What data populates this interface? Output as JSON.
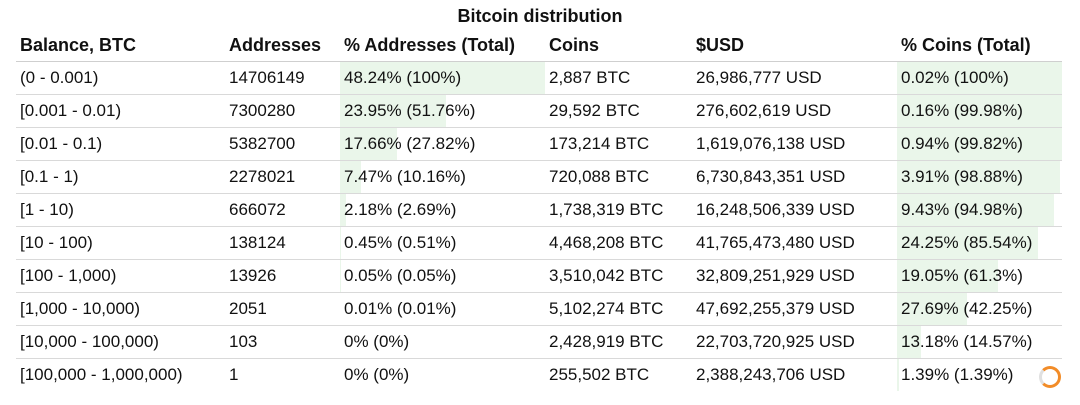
{
  "title": "Bitcoin distribution",
  "columns": [
    "Balance, BTC",
    "Addresses",
    "% Addresses (Total)",
    "Coins",
    "$USD",
    "% Coins (Total)"
  ],
  "rows": [
    {
      "balance": "(0 - 0.001)",
      "addresses": "14706149",
      "pct_addresses": "48.24% (100%)",
      "coins": "2,887 BTC",
      "usd": "26,986,777 USD",
      "pct_coins": "0.02% (100%)",
      "addr_share": 1.0,
      "coin_share": 1.0
    },
    {
      "balance": "[0.001 - 0.01)",
      "addresses": "7300280",
      "pct_addresses": "23.95% (51.76%)",
      "coins": "29,592 BTC",
      "usd": "276,602,619 USD",
      "pct_coins": "0.16% (99.98%)",
      "addr_share": 0.5176,
      "coin_share": 0.9998
    },
    {
      "balance": "[0.01 - 0.1)",
      "addresses": "5382700",
      "pct_addresses": "17.66% (27.82%)",
      "coins": "173,214 BTC",
      "usd": "1,619,076,138 USD",
      "pct_coins": "0.94% (99.82%)",
      "addr_share": 0.2782,
      "coin_share": 0.9982
    },
    {
      "balance": "[0.1 - 1)",
      "addresses": "2278021",
      "pct_addresses": "7.47% (10.16%)",
      "coins": "720,088 BTC",
      "usd": "6,730,843,351 USD",
      "pct_coins": "3.91% (98.88%)",
      "addr_share": 0.1016,
      "coin_share": 0.9888
    },
    {
      "balance": "[1 - 10)",
      "addresses": "666072",
      "pct_addresses": "2.18% (2.69%)",
      "coins": "1,738,319 BTC",
      "usd": "16,248,506,339 USD",
      "pct_coins": "9.43% (94.98%)",
      "addr_share": 0.0269,
      "coin_share": 0.9498
    },
    {
      "balance": "[10 - 100)",
      "addresses": "138124",
      "pct_addresses": "0.45% (0.51%)",
      "coins": "4,468,208 BTC",
      "usd": "41,765,473,480 USD",
      "pct_coins": "24.25% (85.54%)",
      "addr_share": 0.0051,
      "coin_share": 0.8554
    },
    {
      "balance": "[100 - 1,000)",
      "addresses": "13926",
      "pct_addresses": "0.05% (0.05%)",
      "coins": "3,510,042 BTC",
      "usd": "32,809,251,929 USD",
      "pct_coins": "19.05% (61.3%)",
      "addr_share": 0.0005,
      "coin_share": 0.613
    },
    {
      "balance": "[1,000 - 10,000)",
      "addresses": "2051",
      "pct_addresses": "0.01% (0.01%)",
      "coins": "5,102,274 BTC",
      "usd": "47,692,255,379 USD",
      "pct_coins": "27.69% (42.25%)",
      "addr_share": 0.0001,
      "coin_share": 0.4225
    },
    {
      "balance": "[10,000 - 100,000)",
      "addresses": "103",
      "pct_addresses": "0% (0%)",
      "coins": "2,428,919 BTC",
      "usd": "22,703,720,925 USD",
      "pct_coins": "13.18% (14.57%)",
      "addr_share": 0.0,
      "coin_share": 0.1457
    },
    {
      "balance": "[100,000 - 1,000,000)",
      "addresses": "1",
      "pct_addresses": "0% (0%)",
      "coins": "255,502 BTC",
      "usd": "2,388,243,706 USD",
      "pct_coins": "1.39% (1.39%)",
      "addr_share": 0.0,
      "coin_share": 0.0139
    }
  ],
  "colors": {
    "bar_fill": "#eaf6ea",
    "spinner": "#f28c28"
  },
  "icons": {
    "loading": "spinner-icon"
  }
}
